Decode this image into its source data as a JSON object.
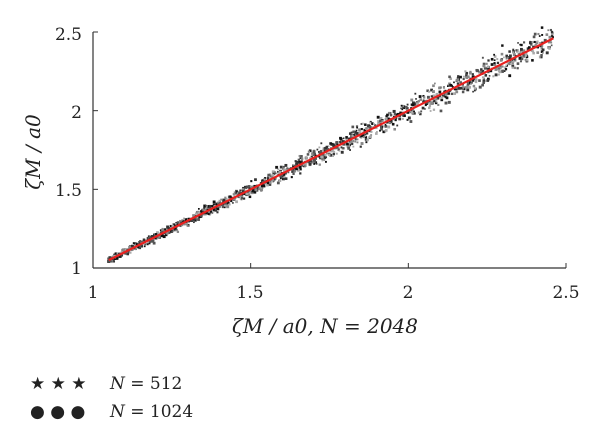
{
  "chart_data": {
    "type": "scatter",
    "title": "",
    "xlabel": "ζM / a0, N = 2048",
    "ylabel": "ζM / a0",
    "xlim": [
      1,
      2.5
    ],
    "ylim": [
      1,
      2.5
    ],
    "x_ticks": [
      "1",
      "1.5",
      "2",
      "2.5"
    ],
    "y_ticks": [
      "1",
      "1.5",
      "2",
      "2.5"
    ],
    "grid": false,
    "legend_position": "bottom-left",
    "fit_line": {
      "x": [
        1.05,
        2.46
      ],
      "y": [
        1.05,
        2.46
      ],
      "color": "#e8201e"
    },
    "series": [
      {
        "name": "N = 512",
        "marker": "star",
        "color": "#111111",
        "x_range": [
          1.05,
          2.46
        ],
        "spread": 0.04,
        "count": 700
      },
      {
        "name": "N = 1024",
        "marker": "dot",
        "color": "#e8201e",
        "x_range": [
          1.05,
          2.46
        ],
        "spread": 0.035,
        "count": 700
      }
    ],
    "legend": [
      {
        "marker": "★ ★ ★",
        "name": "N",
        "value": " = 512",
        "color": "#111111"
      },
      {
        "marker": "● ● ●",
        "name": "N",
        "value": " = 1024",
        "color": "#e8201e"
      }
    ]
  }
}
